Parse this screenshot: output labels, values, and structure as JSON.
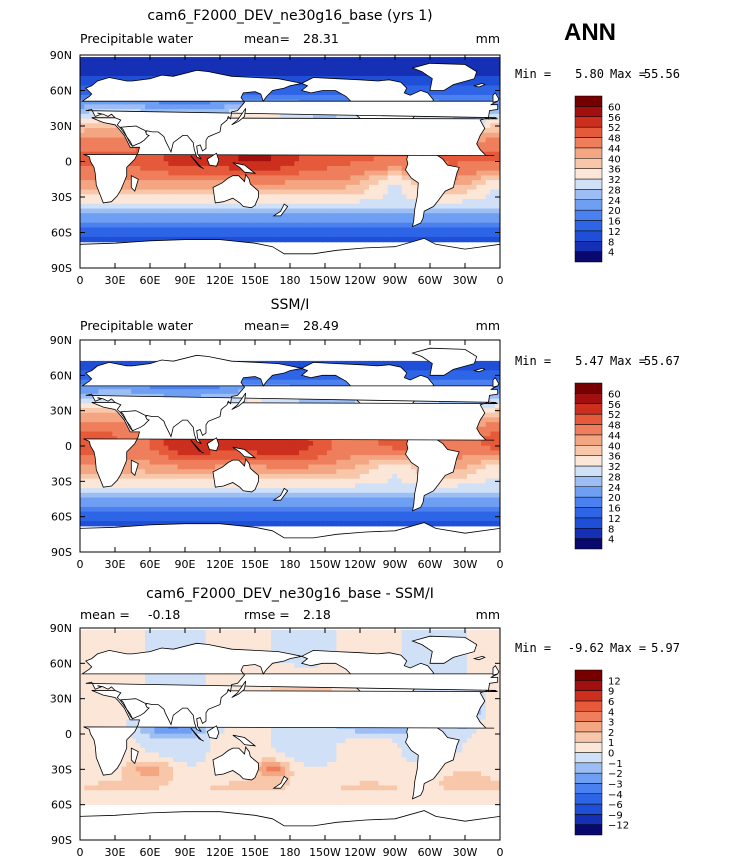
{
  "season": "ANN",
  "panels": [
    {
      "title": "cam6_F2000_DEV_ne30g16_base (yrs 1)",
      "left_label": "Precipitable water",
      "stat_label": "mean=",
      "stat_value": "28.31",
      "units": "mm",
      "min_text": "Min =",
      "min_value": "5.80",
      "max_text": "Max =",
      "max_value": "55.56",
      "colorbar": "absolute"
    },
    {
      "title": "SSM/I",
      "left_label": "Precipitable water",
      "stat_label": "mean=",
      "stat_value": "28.49",
      "units": "mm",
      "min_text": "Min =",
      "min_value": "5.47",
      "max_text": "Max =",
      "max_value": "55.67",
      "colorbar": "absolute"
    },
    {
      "title": "cam6_F2000_DEV_ne30g16_base - SSM/I",
      "left_label": "mean =",
      "left_value": "-0.18",
      "stat_label": "rmse =",
      "stat_value": "2.18",
      "units": "mm",
      "min_text": "Min =",
      "min_value": "-9.62",
      "max_text": "Max =",
      "max_value": "5.97",
      "colorbar": "difference"
    }
  ],
  "colorbars": {
    "absolute": {
      "levels": [
        "4",
        "8",
        "12",
        "16",
        "20",
        "24",
        "28",
        "32",
        "36",
        "40",
        "44",
        "48",
        "52",
        "56",
        "60"
      ],
      "colors": [
        "#08086e",
        "#1530b5",
        "#1f4fd6",
        "#2e64e6",
        "#4a80ef",
        "#6e9ff3",
        "#9cbef5",
        "#cfe0f7",
        "#fbe6d8",
        "#f8c6a8",
        "#f4a582",
        "#ef7f5c",
        "#e45a3a",
        "#cc2f1e",
        "#a10f0f",
        "#760000"
      ]
    },
    "difference": {
      "levels": [
        "-12",
        "-9",
        "-6",
        "-4",
        "-3",
        "-2",
        "-1",
        "0",
        "1",
        "2",
        "3",
        "4",
        "6",
        "9",
        "12"
      ],
      "colors": [
        "#08086e",
        "#1530b5",
        "#1f4fd6",
        "#2e64e6",
        "#4a80ef",
        "#6e9ff3",
        "#9cbef5",
        "#cfe0f7",
        "#fbe6d8",
        "#f8c6a8",
        "#f4a582",
        "#ef7f5c",
        "#e45a3a",
        "#cc2f1e",
        "#a10f0f",
        "#760000"
      ]
    }
  },
  "chart_data": [
    {
      "type": "heatmap",
      "title": "cam6_F2000_DEV_ne30g16_base (yrs 1)",
      "variable": "Precipitable water",
      "units": "mm",
      "mean": 28.31,
      "min": 5.8,
      "max": 55.56,
      "x_ticks": [
        "0",
        "30E",
        "60E",
        "90E",
        "120E",
        "150E",
        "180",
        "150W",
        "120W",
        "90W",
        "60W",
        "30W",
        "0"
      ],
      "y_ticks": [
        "90N",
        "60N",
        "30N",
        "0",
        "30S",
        "60S",
        "90S"
      ],
      "xlim": [
        0,
        360
      ],
      "ylim": [
        -90,
        90
      ],
      "contour_levels": [
        4,
        8,
        12,
        16,
        20,
        24,
        28,
        32,
        36,
        40,
        44,
        48,
        52,
        56,
        60
      ]
    },
    {
      "type": "heatmap",
      "title": "SSM/I",
      "variable": "Precipitable water",
      "units": "mm",
      "mean": 28.49,
      "min": 5.47,
      "max": 55.67,
      "x_ticks": [
        "0",
        "30E",
        "60E",
        "90E",
        "120E",
        "150E",
        "180",
        "150W",
        "120W",
        "90W",
        "60W",
        "30W",
        "0"
      ],
      "y_ticks": [
        "90N",
        "60N",
        "30N",
        "0",
        "30S",
        "60S",
        "90S"
      ],
      "xlim": [
        0,
        360
      ],
      "ylim": [
        -90,
        90
      ],
      "contour_levels": [
        4,
        8,
        12,
        16,
        20,
        24,
        28,
        32,
        36,
        40,
        44,
        48,
        52,
        56,
        60
      ]
    },
    {
      "type": "heatmap",
      "title": "cam6_F2000_DEV_ne30g16_base - SSM/I",
      "units": "mm",
      "mean": -0.18,
      "rmse": 2.18,
      "min": -9.62,
      "max": 5.97,
      "x_ticks": [
        "0",
        "30E",
        "60E",
        "90E",
        "120E",
        "150E",
        "180",
        "150W",
        "120W",
        "90W",
        "60W",
        "30W",
        "0"
      ],
      "y_ticks": [
        "90N",
        "60N",
        "30N",
        "0",
        "30S",
        "60S",
        "90S"
      ],
      "xlim": [
        0,
        360
      ],
      "ylim": [
        -90,
        90
      ],
      "contour_levels": [
        -12,
        -9,
        -6,
        -4,
        -3,
        -2,
        -1,
        0,
        1,
        2,
        3,
        4,
        6,
        9,
        12
      ]
    }
  ]
}
